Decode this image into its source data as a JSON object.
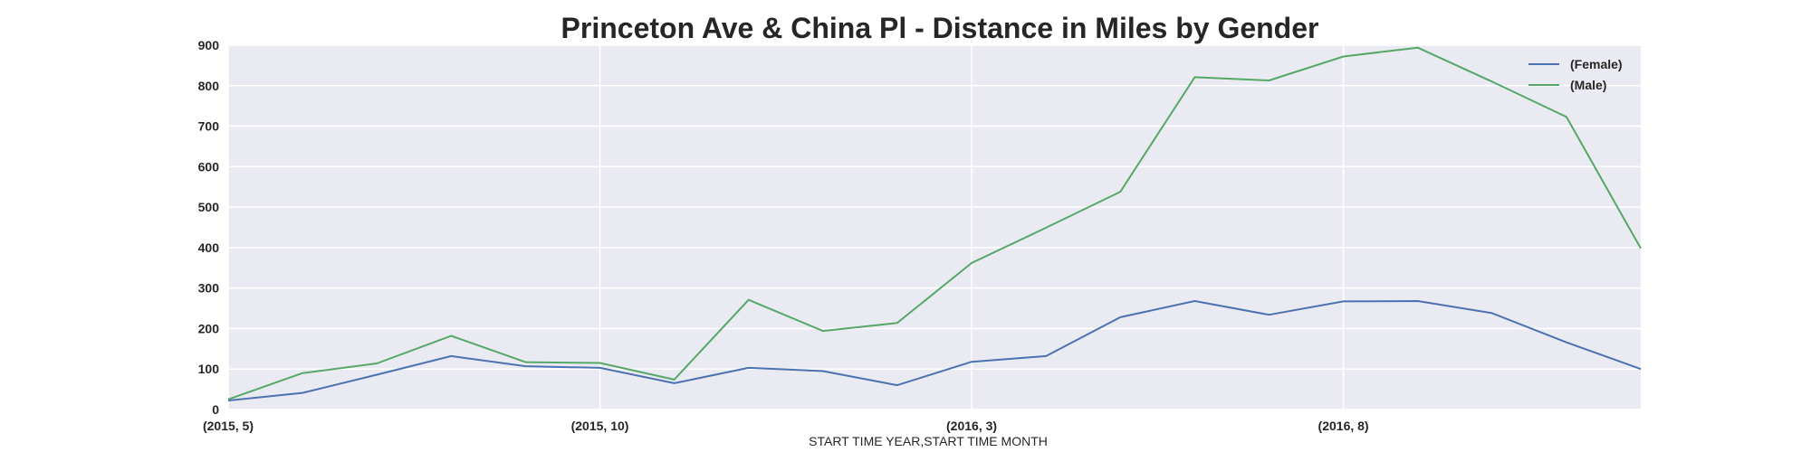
{
  "chart_data": {
    "type": "line",
    "title": "Princeton Ave & China Pl - Distance in Miles by Gender",
    "xlabel": "START TIME YEAR,START TIME MONTH",
    "ylabel": "",
    "x": [
      "(2015, 5)",
      "(2015, 6)",
      "(2015, 7)",
      "(2015, 8)",
      "(2015, 9)",
      "(2015, 10)",
      "(2015, 11)",
      "(2015, 12)",
      "(2016, 1)",
      "(2016, 2)",
      "(2016, 3)",
      "(2016, 4)",
      "(2016, 5)",
      "(2016, 6)",
      "(2016, 7)",
      "(2016, 8)",
      "(2016, 9)",
      "(2016, 10)",
      "(2016, 11)",
      "(2016, 12)"
    ],
    "x_tick_labels": [
      {
        "index": 0,
        "label": "(2015, 5)"
      },
      {
        "index": 5,
        "label": "(2015, 10)"
      },
      {
        "index": 10,
        "label": "(2016, 3)"
      },
      {
        "index": 15,
        "label": "(2016, 8)"
      }
    ],
    "ylim": [
      0,
      900
    ],
    "y_ticks": [
      0,
      100,
      200,
      300,
      400,
      500,
      600,
      700,
      800,
      900
    ],
    "grid": true,
    "legend_position": "top-right",
    "background": "#eaeaf2",
    "series": [
      {
        "name": "(Female)",
        "color": "#4c72b0",
        "values": [
          22,
          41,
          86,
          132,
          107,
          103,
          65,
          103,
          95,
          60,
          118,
          132,
          228,
          268,
          234,
          267,
          268,
          238,
          166,
          100
        ]
      },
      {
        "name": "(Male)",
        "color": "#55a868",
        "values": [
          25,
          90,
          114,
          182,
          117,
          115,
          74,
          271,
          194,
          214,
          362,
          449,
          538,
          821,
          813,
          872,
          894,
          810,
          723,
          398
        ]
      }
    ]
  }
}
